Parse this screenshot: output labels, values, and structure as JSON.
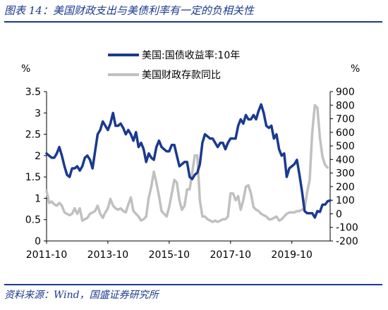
{
  "figure": {
    "title": "图表 14：美国财政支出与美债利率有一定的负相关性",
    "source": "资料来源：Wind，国盛证券研究所"
  },
  "chart_data": {
    "type": "line",
    "x_tick_labels": [
      "2011-10",
      "2013-10",
      "2015-10",
      "2017-10",
      "2019-10"
    ],
    "x_range": [
      "2011-10",
      "2021-01"
    ],
    "left_axis": {
      "unit": "%",
      "range": [
        0,
        3.5
      ],
      "ticks": [
        "0",
        "0.5",
        "1",
        "1.5",
        "2",
        "2.5",
        "3",
        "3.5"
      ]
    },
    "right_axis": {
      "unit": "%",
      "range": [
        -200,
        900
      ],
      "ticks": [
        "-200",
        "-100",
        "0",
        "100",
        "200",
        "300",
        "400",
        "500",
        "600",
        "700",
        "800",
        "900"
      ]
    },
    "grid": false,
    "legend_position": "top-center",
    "series": [
      {
        "name": "美国:国债收益率:10年",
        "axis": "left",
        "color": "#1a3a8f",
        "points": [
          [
            "2011-10",
            2.05
          ],
          [
            "2011-11",
            2.0
          ],
          [
            "2011-12",
            1.95
          ],
          [
            "2012-01",
            1.95
          ],
          [
            "2012-02",
            2.05
          ],
          [
            "2012-03",
            2.2
          ],
          [
            "2012-04",
            2.0
          ],
          [
            "2012-05",
            1.75
          ],
          [
            "2012-06",
            1.55
          ],
          [
            "2012-07",
            1.5
          ],
          [
            "2012-08",
            1.7
          ],
          [
            "2012-09",
            1.7
          ],
          [
            "2012-10",
            1.75
          ],
          [
            "2012-11",
            1.65
          ],
          [
            "2012-12",
            1.75
          ],
          [
            "2013-01",
            1.95
          ],
          [
            "2013-02",
            2.0
          ],
          [
            "2013-03",
            1.9
          ],
          [
            "2013-04",
            1.7
          ],
          [
            "2013-05",
            2.1
          ],
          [
            "2013-06",
            2.5
          ],
          [
            "2013-07",
            2.6
          ],
          [
            "2013-08",
            2.8
          ],
          [
            "2013-09",
            2.7
          ],
          [
            "2013-10",
            2.6
          ],
          [
            "2013-11",
            2.75
          ],
          [
            "2013-12",
            3.0
          ],
          [
            "2014-01",
            2.7
          ],
          [
            "2014-02",
            2.7
          ],
          [
            "2014-03",
            2.75
          ],
          [
            "2014-04",
            2.65
          ],
          [
            "2014-05",
            2.5
          ],
          [
            "2014-06",
            2.6
          ],
          [
            "2014-07",
            2.5
          ],
          [
            "2014-08",
            2.35
          ],
          [
            "2014-09",
            2.55
          ],
          [
            "2014-10",
            2.2
          ],
          [
            "2014-11",
            2.3
          ],
          [
            "2014-12",
            2.15
          ],
          [
            "2015-01",
            1.85
          ],
          [
            "2015-02",
            2.05
          ],
          [
            "2015-03",
            1.95
          ],
          [
            "2015-04",
            1.9
          ],
          [
            "2015-05",
            2.2
          ],
          [
            "2015-06",
            2.35
          ],
          [
            "2015-07",
            2.2
          ],
          [
            "2015-08",
            2.15
          ],
          [
            "2015-09",
            2.1
          ],
          [
            "2015-10",
            2.1
          ],
          [
            "2015-11",
            2.25
          ],
          [
            "2015-12",
            2.25
          ],
          [
            "2016-01",
            2.0
          ],
          [
            "2016-02",
            1.75
          ],
          [
            "2016-03",
            1.8
          ],
          [
            "2016-04",
            1.85
          ],
          [
            "2016-05",
            1.85
          ],
          [
            "2016-06",
            1.5
          ],
          [
            "2016-07",
            1.45
          ],
          [
            "2016-08",
            1.55
          ],
          [
            "2016-09",
            1.6
          ],
          [
            "2016-10",
            1.8
          ],
          [
            "2016-11",
            2.3
          ],
          [
            "2016-12",
            2.5
          ],
          [
            "2017-01",
            2.45
          ],
          [
            "2017-02",
            2.4
          ],
          [
            "2017-03",
            2.4
          ],
          [
            "2017-04",
            2.3
          ],
          [
            "2017-05",
            2.2
          ],
          [
            "2017-06",
            2.3
          ],
          [
            "2017-07",
            2.3
          ],
          [
            "2017-08",
            2.15
          ],
          [
            "2017-09",
            2.3
          ],
          [
            "2017-10",
            2.4
          ],
          [
            "2017-11",
            2.4
          ],
          [
            "2017-12",
            2.4
          ],
          [
            "2018-01",
            2.7
          ],
          [
            "2018-02",
            2.85
          ],
          [
            "2018-03",
            2.75
          ],
          [
            "2018-04",
            2.95
          ],
          [
            "2018-05",
            2.85
          ],
          [
            "2018-06",
            2.85
          ],
          [
            "2018-07",
            2.95
          ],
          [
            "2018-08",
            2.85
          ],
          [
            "2018-09",
            3.05
          ],
          [
            "2018-10",
            3.2
          ],
          [
            "2018-11",
            3.0
          ],
          [
            "2018-12",
            2.7
          ],
          [
            "2019-01",
            2.65
          ],
          [
            "2019-02",
            2.7
          ],
          [
            "2019-03",
            2.4
          ],
          [
            "2019-04",
            2.5
          ],
          [
            "2019-05",
            2.15
          ],
          [
            "2019-06",
            2.0
          ],
          [
            "2019-07",
            2.05
          ],
          [
            "2019-08",
            1.5
          ],
          [
            "2019-09",
            1.7
          ],
          [
            "2019-10",
            1.75
          ],
          [
            "2019-11",
            1.8
          ],
          [
            "2019-12",
            1.9
          ],
          [
            "2020-01",
            1.55
          ],
          [
            "2020-02",
            1.15
          ],
          [
            "2020-03",
            0.7
          ],
          [
            "2020-04",
            0.65
          ],
          [
            "2020-05",
            0.65
          ],
          [
            "2020-06",
            0.65
          ],
          [
            "2020-07",
            0.55
          ],
          [
            "2020-08",
            0.7
          ],
          [
            "2020-09",
            0.68
          ],
          [
            "2020-10",
            0.85
          ],
          [
            "2020-11",
            0.85
          ],
          [
            "2020-12",
            0.93
          ],
          [
            "2021-01",
            0.95
          ]
        ]
      },
      {
        "name": "美国财政存款同比",
        "axis": "right",
        "color": "#c0c0c0",
        "points": [
          [
            "2011-10",
            170
          ],
          [
            "2011-11",
            80
          ],
          [
            "2011-12",
            90
          ],
          [
            "2012-01",
            70
          ],
          [
            "2012-02",
            60
          ],
          [
            "2012-03",
            80
          ],
          [
            "2012-04",
            60
          ],
          [
            "2012-05",
            10
          ],
          [
            "2012-06",
            0
          ],
          [
            "2012-07",
            -10
          ],
          [
            "2012-08",
            0
          ],
          [
            "2012-09",
            40
          ],
          [
            "2012-10",
            0
          ],
          [
            "2012-11",
            40
          ],
          [
            "2012-12",
            -50
          ],
          [
            "2013-01",
            -40
          ],
          [
            "2013-02",
            -30
          ],
          [
            "2013-03",
            0
          ],
          [
            "2013-04",
            10
          ],
          [
            "2013-05",
            20
          ],
          [
            "2013-06",
            60
          ],
          [
            "2013-07",
            0
          ],
          [
            "2013-08",
            -30
          ],
          [
            "2013-09",
            10
          ],
          [
            "2013-10",
            40
          ],
          [
            "2013-11",
            110
          ],
          [
            "2013-12",
            60
          ],
          [
            "2014-01",
            40
          ],
          [
            "2014-02",
            30
          ],
          [
            "2014-03",
            40
          ],
          [
            "2014-04",
            20
          ],
          [
            "2014-05",
            10
          ],
          [
            "2014-06",
            70
          ],
          [
            "2014-07",
            120
          ],
          [
            "2014-08",
            20
          ],
          [
            "2014-09",
            0
          ],
          [
            "2014-10",
            -20
          ],
          [
            "2014-11",
            -50
          ],
          [
            "2014-12",
            -40
          ],
          [
            "2015-01",
            -20
          ],
          [
            "2015-02",
            120
          ],
          [
            "2015-03",
            200
          ],
          [
            "2015-04",
            310
          ],
          [
            "2015-05",
            230
          ],
          [
            "2015-06",
            130
          ],
          [
            "2015-07",
            20
          ],
          [
            "2015-08",
            0
          ],
          [
            "2015-09",
            -20
          ],
          [
            "2015-10",
            50
          ],
          [
            "2015-11",
            150
          ],
          [
            "2015-12",
            250
          ],
          [
            "2016-01",
            230
          ],
          [
            "2016-02",
            100
          ],
          [
            "2016-03",
            30
          ],
          [
            "2016-04",
            60
          ],
          [
            "2016-05",
            180
          ],
          [
            "2016-06",
            180
          ],
          [
            "2016-07",
            300
          ],
          [
            "2016-08",
            430
          ],
          [
            "2016-09",
            430
          ],
          [
            "2016-10",
            100
          ],
          [
            "2016-11",
            -20
          ],
          [
            "2016-12",
            -20
          ],
          [
            "2017-01",
            -40
          ],
          [
            "2017-02",
            -50
          ],
          [
            "2017-03",
            -60
          ],
          [
            "2017-04",
            -50
          ],
          [
            "2017-05",
            -60
          ],
          [
            "2017-06",
            -50
          ],
          [
            "2017-07",
            -40
          ],
          [
            "2017-08",
            -40
          ],
          [
            "2017-09",
            -20
          ],
          [
            "2017-10",
            150
          ],
          [
            "2017-11",
            150
          ],
          [
            "2017-12",
            100
          ],
          [
            "2018-01",
            130
          ],
          [
            "2018-02",
            30
          ],
          [
            "2018-03",
            100
          ],
          [
            "2018-04",
            200
          ],
          [
            "2018-05",
            210
          ],
          [
            "2018-06",
            150
          ],
          [
            "2018-07",
            50
          ],
          [
            "2018-08",
            30
          ],
          [
            "2018-09",
            20
          ],
          [
            "2018-10",
            0
          ],
          [
            "2018-11",
            -10
          ],
          [
            "2018-12",
            -20
          ],
          [
            "2019-01",
            -40
          ],
          [
            "2019-02",
            -40
          ],
          [
            "2019-03",
            -30
          ],
          [
            "2019-04",
            -20
          ],
          [
            "2019-05",
            -50
          ],
          [
            "2019-06",
            -40
          ],
          [
            "2019-07",
            -20
          ],
          [
            "2019-08",
            0
          ],
          [
            "2019-09",
            10
          ],
          [
            "2019-10",
            10
          ],
          [
            "2019-11",
            10
          ],
          [
            "2019-12",
            20
          ],
          [
            "2020-01",
            20
          ],
          [
            "2020-02",
            30
          ],
          [
            "2020-03",
            40
          ],
          [
            "2020-04",
            160
          ],
          [
            "2020-05",
            250
          ],
          [
            "2020-06",
            600
          ],
          [
            "2020-07",
            800
          ],
          [
            "2020-08",
            780
          ],
          [
            "2020-09",
            560
          ],
          [
            "2020-10",
            420
          ],
          [
            "2020-11",
            360
          ],
          [
            "2020-12",
            340
          ]
        ]
      }
    ]
  }
}
